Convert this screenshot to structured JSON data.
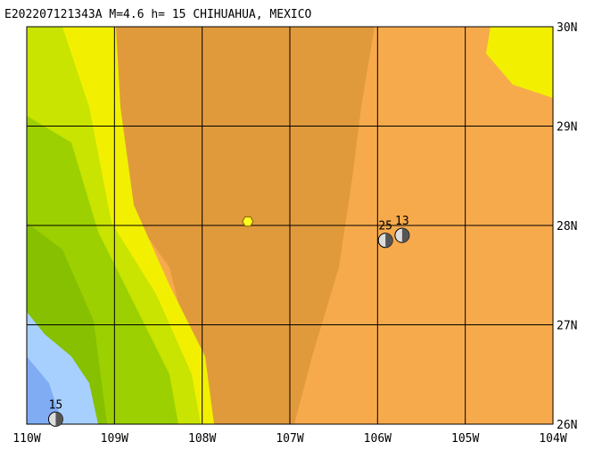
{
  "title": "E202207121343A M=4.6 h= 15 CHIHUAHUA, MEXICO",
  "map": {
    "lon_ticks": [
      {
        "value": -110,
        "label": "110W"
      },
      {
        "value": -109,
        "label": "109W"
      },
      {
        "value": -108,
        "label": "108W"
      },
      {
        "value": -107,
        "label": "107W"
      },
      {
        "value": -106,
        "label": "106W"
      },
      {
        "value": -105,
        "label": "105W"
      },
      {
        "value": -104,
        "label": "104W"
      }
    ],
    "lat_ticks": [
      {
        "value": 26,
        "label": "26N"
      },
      {
        "value": 27,
        "label": "27N"
      },
      {
        "value": 28,
        "label": "28N"
      },
      {
        "value": 29,
        "label": "29N"
      },
      {
        "value": 30,
        "label": "30N"
      }
    ]
  },
  "event": {
    "lon": -107.48,
    "lat": 28.04
  },
  "stations": [
    {
      "label": "25",
      "lon": -105.91,
      "lat": 27.85
    },
    {
      "label": "13",
      "lon": -105.72,
      "lat": 27.9
    },
    {
      "label": "15",
      "lon": -109.67,
      "lat": 26.05
    }
  ]
}
